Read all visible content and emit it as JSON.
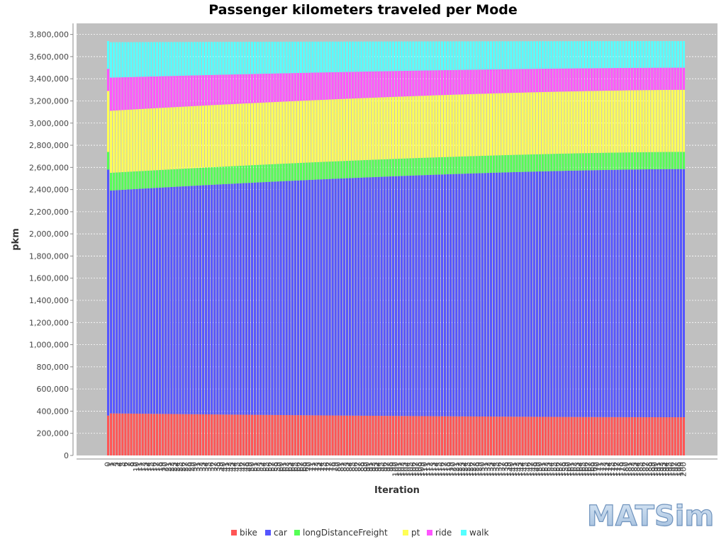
{
  "chart_data": {
    "type": "bar",
    "stacked": true,
    "title": "Passenger kilometers traveled per Mode",
    "xlabel": "Iteration",
    "ylabel": "pkm",
    "ylim": [
      0,
      3900000
    ],
    "yticks": [
      0,
      200000,
      400000,
      600000,
      800000,
      1000000,
      1200000,
      1400000,
      1600000,
      1800000,
      2000000,
      2200000,
      2400000,
      2600000,
      2800000,
      3000000,
      3200000,
      3400000,
      3600000,
      3800000
    ],
    "ytick_labels": [
      "0",
      "200,000",
      "400,000",
      "600,000",
      "800,000",
      "1,000,000",
      "1,200,000",
      "1,400,000",
      "1,600,000",
      "1,800,000",
      "2,000,000",
      "2,200,000",
      "2,400,000",
      "2,600,000",
      "2,800,000",
      "3,000,000",
      "3,200,000",
      "3,400,000",
      "3,600,000",
      "3,800,000"
    ],
    "grid": true,
    "background": "#c0c0c0",
    "legend_position": "bottom",
    "iterations_first": 0,
    "iterations_last": 200,
    "series": [
      {
        "name": "bike",
        "color": "#ff5555",
        "first": 360000,
        "start": 380000,
        "end": 345000
      },
      {
        "name": "car",
        "color": "#5555ff",
        "first": 2220000,
        "start": 2010000,
        "end": 2240000
      },
      {
        "name": "longDistanceFreight",
        "color": "#55ff55",
        "first": 160000,
        "start": 160000,
        "end": 155000
      },
      {
        "name": "pt",
        "color": "#ffff55",
        "first": 550000,
        "start": 560000,
        "end": 560000
      },
      {
        "name": "ride",
        "color": "#ff55ff",
        "first": 200000,
        "start": 300000,
        "end": 200000
      },
      {
        "name": "walk",
        "color": "#55ffff",
        "first": 250000,
        "start": 320000,
        "end": 240000
      }
    ]
  },
  "branding": {
    "logo_text": "MATSim"
  }
}
